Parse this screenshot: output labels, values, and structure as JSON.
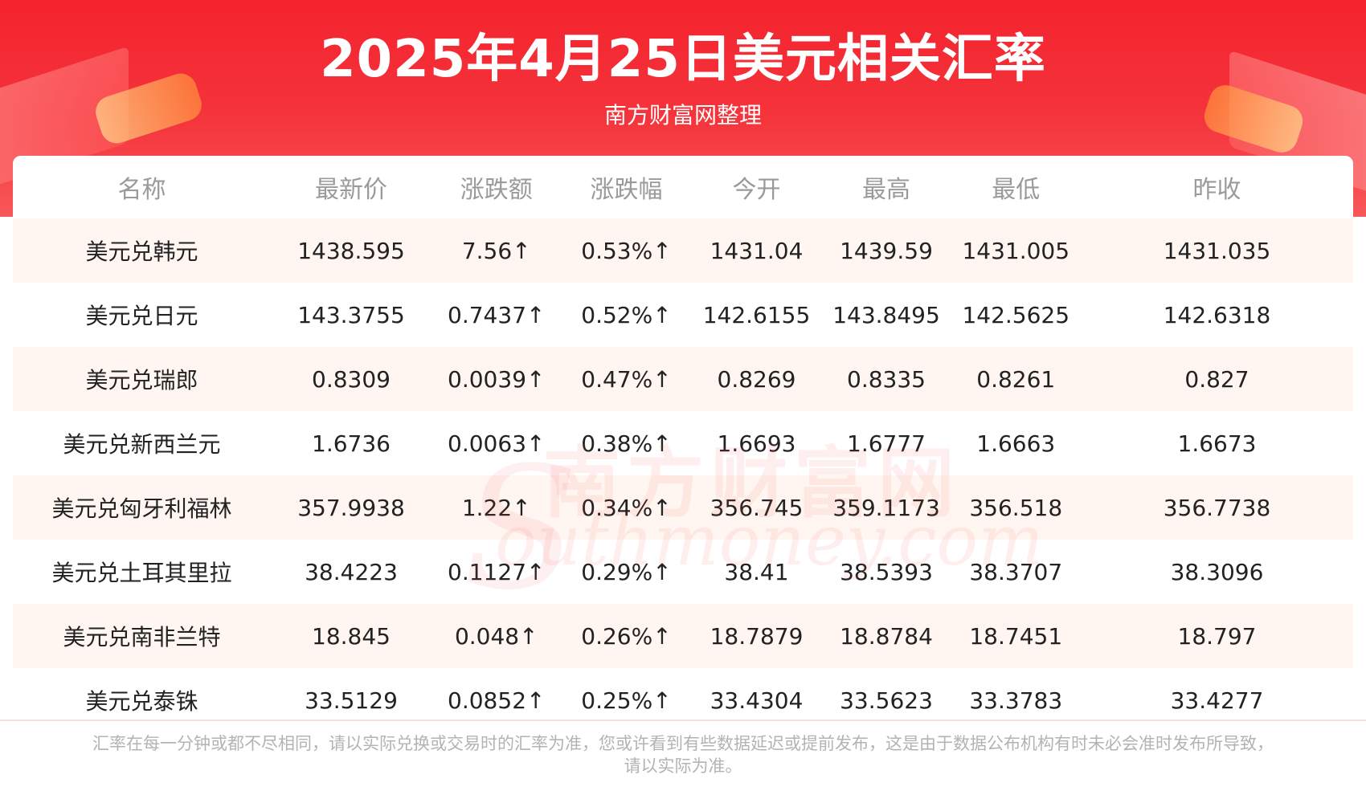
{
  "header": {
    "title": "2025年4月25日美元相关汇率",
    "subtitle": "南方财富网整理"
  },
  "watermark": {
    "cn": "南方财富网",
    "en": "outhmoney.com",
    "initial": "S"
  },
  "table": {
    "columns": [
      "名称",
      "最新价",
      "涨跌额",
      "涨跌幅",
      "今开",
      "最高",
      "最低",
      "昨收"
    ],
    "rows": [
      {
        "name": "美元兑韩元",
        "latest": "1438.595",
        "change": "7.56↑",
        "pct": "0.53%↑",
        "open": "1431.04",
        "high": "1439.59",
        "low": "1431.005",
        "prev": "1431.035"
      },
      {
        "name": "美元兑日元",
        "latest": "143.3755",
        "change": "0.7437↑",
        "pct": "0.52%↑",
        "open": "142.6155",
        "high": "143.8495",
        "low": "142.5625",
        "prev": "142.6318"
      },
      {
        "name": "美元兑瑞郎",
        "latest": "0.8309",
        "change": "0.0039↑",
        "pct": "0.47%↑",
        "open": "0.8269",
        "high": "0.8335",
        "low": "0.8261",
        "prev": "0.827"
      },
      {
        "name": "美元兑新西兰元",
        "latest": "1.6736",
        "change": "0.0063↑",
        "pct": "0.38%↑",
        "open": "1.6693",
        "high": "1.6777",
        "low": "1.6663",
        "prev": "1.6673"
      },
      {
        "name": "美元兑匈牙利福林",
        "latest": "357.9938",
        "change": "1.22↑",
        "pct": "0.34%↑",
        "open": "356.745",
        "high": "359.1173",
        "low": "356.518",
        "prev": "356.7738"
      },
      {
        "name": "美元兑土耳其里拉",
        "latest": "38.4223",
        "change": "0.1127↑",
        "pct": "0.29%↑",
        "open": "38.41",
        "high": "38.5393",
        "low": "38.3707",
        "prev": "38.3096"
      },
      {
        "name": "美元兑南非兰特",
        "latest": "18.845",
        "change": "0.048↑",
        "pct": "0.26%↑",
        "open": "18.7879",
        "high": "18.8784",
        "low": "18.7451",
        "prev": "18.797"
      },
      {
        "name": "美元兑泰铢",
        "latest": "33.5129",
        "change": "0.0852↑",
        "pct": "0.25%↑",
        "open": "33.4304",
        "high": "33.5623",
        "low": "33.3783",
        "prev": "33.4277"
      }
    ]
  },
  "footnote": {
    "line1": "汇率在每一分钟或都不尽相同，请以实际兑换或交易时的汇率为准，您或许看到有些数据延迟或提前发布，这是由于数据公布机构有时未必会准时发布所导致，",
    "line2": "请以实际为准。"
  },
  "colors": {
    "header_red": "#f3232e",
    "value_red": "#f0262a",
    "header_text_gray": "#9a9a9a",
    "stripe": "#fff4ee"
  }
}
